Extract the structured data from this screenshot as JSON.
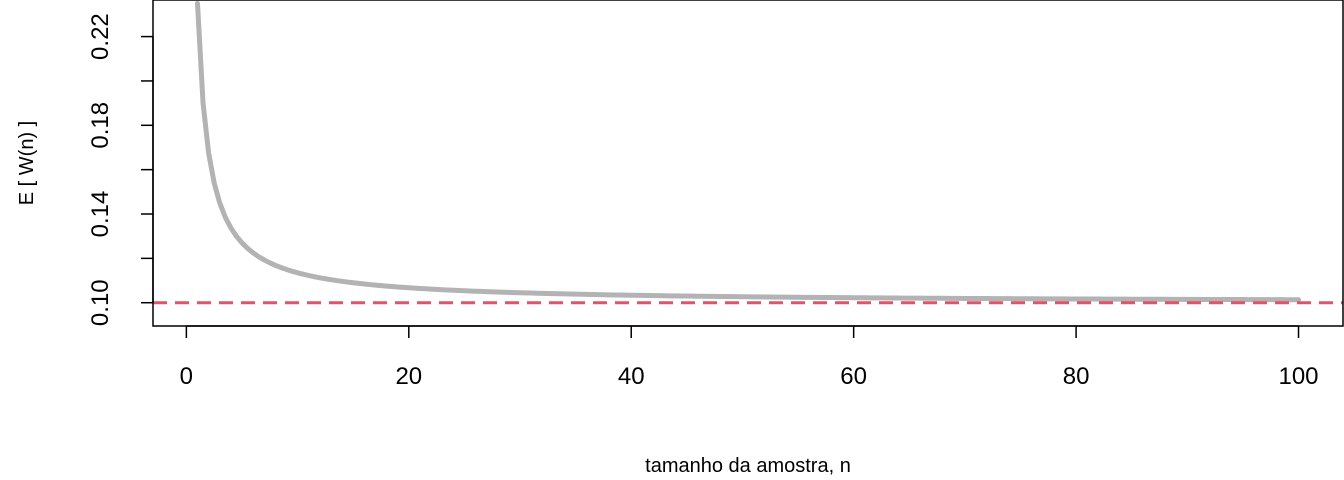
{
  "chart_data": {
    "type": "line",
    "title": "",
    "xlabel": "tamanho da amostra, n",
    "ylabel": "E [ W(n) ]",
    "xlim": [
      -3,
      104
    ],
    "ylim": [
      0.0895,
      0.2365
    ],
    "x_ticks": [
      0,
      20,
      40,
      60,
      80,
      100
    ],
    "x_tick_labels": [
      "0",
      "20",
      "40",
      "60",
      "80",
      "100"
    ],
    "y_ticks": [
      0.1,
      0.12,
      0.14,
      0.16,
      0.18,
      0.2,
      0.22
    ],
    "y_tick_labels": [
      "0.10",
      "",
      "0.14",
      "",
      "0.18",
      "",
      "0.22"
    ],
    "grid": false,
    "series": [
      {
        "style": "solid",
        "color": "#b3b3b3",
        "formula": "0.10 + 0.135 / n",
        "x": [
          1,
          2,
          3,
          4,
          5,
          6,
          7,
          8,
          9,
          10,
          12,
          15,
          20,
          25,
          30,
          40,
          50,
          60,
          70,
          80,
          90,
          100
        ],
        "y": [
          0.235,
          0.1675,
          0.145,
          0.1338,
          0.127,
          0.1225,
          0.1193,
          0.1169,
          0.115,
          0.1135,
          0.1113,
          0.109,
          0.1068,
          0.1054,
          0.1045,
          0.1034,
          0.1027,
          0.1023,
          0.1019,
          0.1017,
          0.1015,
          0.1014
        ]
      },
      {
        "style": "dashed",
        "color": "#DF536B",
        "hline": 0.1
      }
    ]
  }
}
